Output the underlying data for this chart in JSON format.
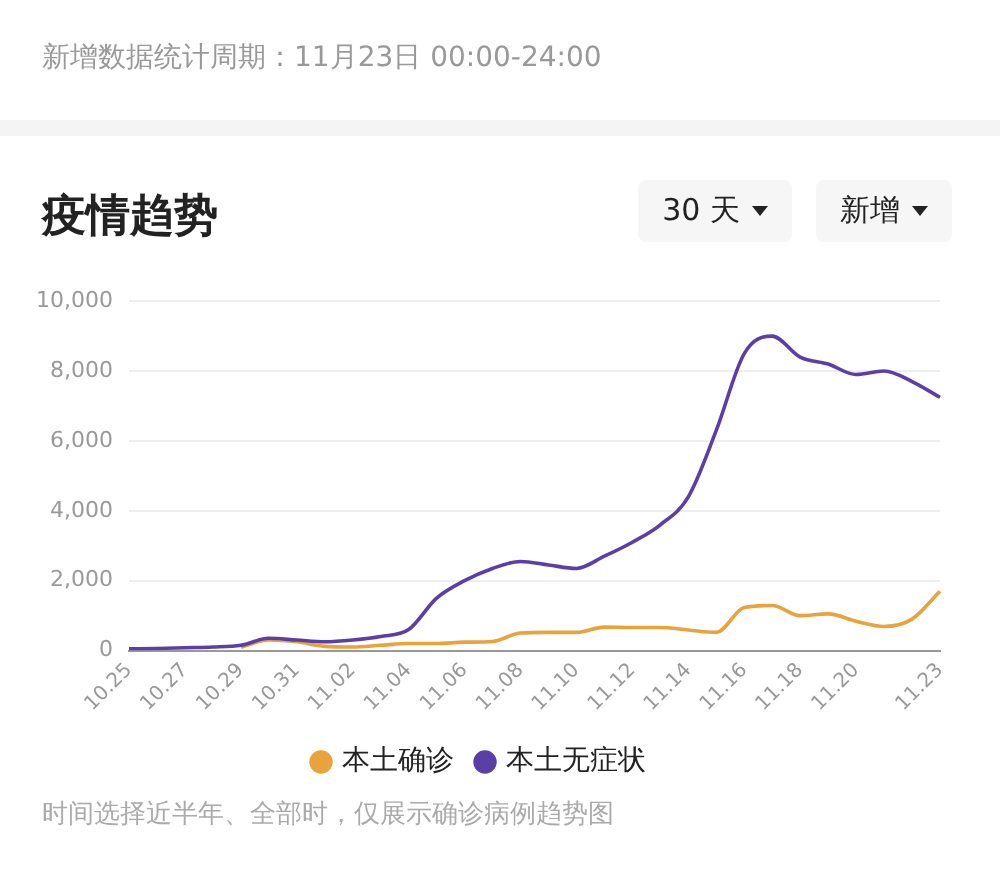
{
  "chart_data": {
    "type": "line",
    "title": "疫情趋势",
    "subtitle": "新增数据统计周期：11月23日 00:00-24:00",
    "categories": [
      "10.25",
      null,
      "10.27",
      null,
      "10.29",
      null,
      "10.31",
      null,
      "11.02",
      null,
      "11.04",
      null,
      "11.06",
      null,
      "11.08",
      null,
      "11.10",
      null,
      "11.12",
      null,
      "11.14",
      null,
      "11.16",
      null,
      "11.18",
      null,
      "11.20",
      null,
      null,
      "11.23"
    ],
    "series": [
      {
        "name": "本土确诊",
        "color": "#e8a33d",
        "values": [
          null,
          null,
          null,
          null,
          100,
          300,
          250,
          120,
          100,
          150,
          200,
          200,
          240,
          260,
          500,
          520,
          520,
          670,
          660,
          660,
          590,
          520,
          1230,
          1290,
          1000,
          1050,
          840,
          690,
          900,
          1700
        ]
      },
      {
        "name": "本土无症状",
        "color": "#5a3fa6",
        "values": [
          50,
          60,
          80,
          100,
          150,
          350,
          300,
          250,
          300,
          400,
          600,
          1500,
          2000,
          2350,
          2550,
          2450,
          2350,
          2700,
          3100,
          3600,
          4400,
          6300,
          8500,
          9000,
          8400,
          8200,
          7900,
          8000,
          7700,
          7250
        ]
      }
    ],
    "ylim": [
      0,
      10000
    ],
    "yticks": [
      0,
      {
        "value": 2000,
        "label": "2,000"
      },
      {
        "value": 4000,
        "label": "4,000"
      },
      {
        "value": 6000,
        "label": "6,000"
      },
      {
        "value": 8000,
        "label": "8,000"
      },
      {
        "value": 10000,
        "label": "10,000"
      }
    ],
    "grid": "y",
    "legend": "bottom",
    "marker": "none",
    "annotations": [
      "30 天",
      "新增",
      "时间选择近半年、全部时，仅展示确诊病例趋势图"
    ]
  }
}
